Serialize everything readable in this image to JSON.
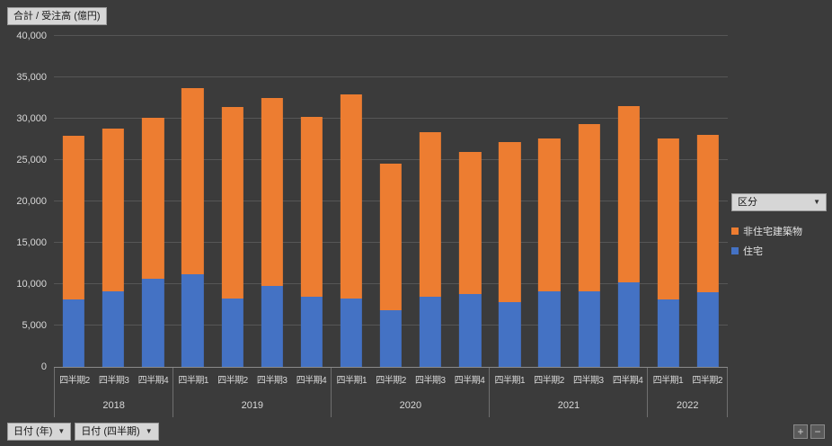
{
  "chart_title_button": {
    "label": "合計 / 受注高 (億円)"
  },
  "legend": {
    "field_button": {
      "label": "区分",
      "arrow": "▼"
    },
    "entries": [
      {
        "label": "非住宅建築物",
        "color": "#ED7D31"
      },
      {
        "label": "住宅",
        "color": "#4472C4"
      }
    ]
  },
  "filter_buttons": {
    "year": {
      "label": "日付 (年)",
      "arrow": "▼"
    },
    "quarter": {
      "label": "日付 (四半期)",
      "arrow": "▼"
    }
  },
  "zoom_controls": {
    "zoom_in": "+",
    "zoom_out": "−"
  },
  "colors": {
    "background": "#3B3B3B",
    "gridline": "#565656",
    "axis_text": "#D9D9D9",
    "series_orange": "#ED7D31",
    "series_blue": "#4472C4"
  },
  "chart_data": {
    "type": "bar",
    "stacked": true,
    "title": "合計 / 受注高 (億円)",
    "ylabel": "受注高 (億円)",
    "ylim": [
      0,
      40000
    ],
    "ytick_interval": 5000,
    "yticks": [
      "0",
      "5,000",
      "10,000",
      "15,000",
      "20,000",
      "25,000",
      "30,000",
      "35,000",
      "40,000"
    ],
    "legend_position": "right",
    "grid": true,
    "groups": [
      {
        "year": "2018",
        "quarters": [
          "四半期2",
          "四半期3",
          "四半期4"
        ]
      },
      {
        "year": "2019",
        "quarters": [
          "四半期1",
          "四半期2",
          "四半期3",
          "四半期4"
        ]
      },
      {
        "year": "2020",
        "quarters": [
          "四半期1",
          "四半期2",
          "四半期3",
          "四半期4"
        ]
      },
      {
        "year": "2021",
        "quarters": [
          "四半期1",
          "四半期2",
          "四半期3",
          "四半期4"
        ]
      },
      {
        "year": "2022",
        "quarters": [
          "四半期1",
          "四半期2"
        ]
      }
    ],
    "categories": [
      "2018-四半期2",
      "2018-四半期3",
      "2018-四半期4",
      "2019-四半期1",
      "2019-四半期2",
      "2019-四半期3",
      "2019-四半期4",
      "2020-四半期1",
      "2020-四半期2",
      "2020-四半期3",
      "2020-四半期4",
      "2021-四半期1",
      "2021-四半期2",
      "2021-四半期3",
      "2021-四半期4",
      "2022-四半期1",
      "2022-四半期2"
    ],
    "series": [
      {
        "name": "住宅",
        "color": "#4472C4",
        "values": [
          8100,
          9100,
          10600,
          11200,
          8300,
          9800,
          8500,
          8300,
          6900,
          8500,
          8800,
          7800,
          9100,
          9100,
          10200,
          8100,
          9000
        ]
      },
      {
        "name": "非住宅建築物",
        "color": "#ED7D31",
        "values": [
          19800,
          19700,
          19500,
          22500,
          23100,
          22700,
          21700,
          24600,
          17700,
          19900,
          17200,
          19400,
          18500,
          20300,
          21300,
          19500,
          19000
        ]
      }
    ],
    "totals": [
      27900,
      28800,
      30100,
      33700,
      31400,
      32500,
      30200,
      32900,
      24600,
      28400,
      26000,
      27200,
      27600,
      29400,
      31500,
      27600,
      28000
    ]
  }
}
